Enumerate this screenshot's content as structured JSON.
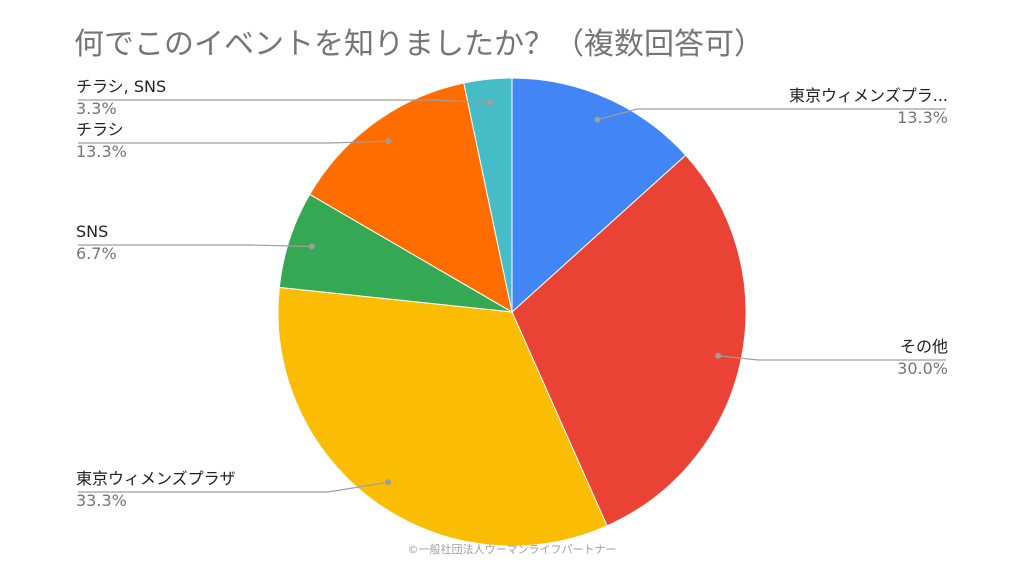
{
  "chart_data": {
    "type": "pie",
    "title": "何でこのイベントを知りましたか？（複数回答可）",
    "slices": [
      {
        "label": "東京ウィメンズプラ...",
        "percent_label": "13.3%",
        "value": 13.3,
        "color": "#4285f4",
        "label_side": "right"
      },
      {
        "label": "その他",
        "percent_label": "30.0%",
        "value": 30.0,
        "color": "#ea4335",
        "label_side": "right"
      },
      {
        "label": "東京ウィメンズプラザ",
        "percent_label": "33.3%",
        "value": 33.3,
        "color": "#fbbc04",
        "label_side": "left"
      },
      {
        "label": "SNS",
        "percent_label": "6.7%",
        "value": 6.7,
        "color": "#34a853",
        "label_side": "left"
      },
      {
        "label": "チラシ",
        "percent_label": "13.3%",
        "value": 13.3,
        "color": "#ff6d01",
        "label_side": "left"
      },
      {
        "label": "チラシ, SNS",
        "percent_label": "3.3%",
        "value": 3.3,
        "color": "#46bdc6",
        "label_side": "left"
      }
    ],
    "start_angle": "12 o'clock",
    "direction": "clockwise",
    "legend": "none"
  },
  "credit": "©一般社団法人ウーマンライフパートナー"
}
